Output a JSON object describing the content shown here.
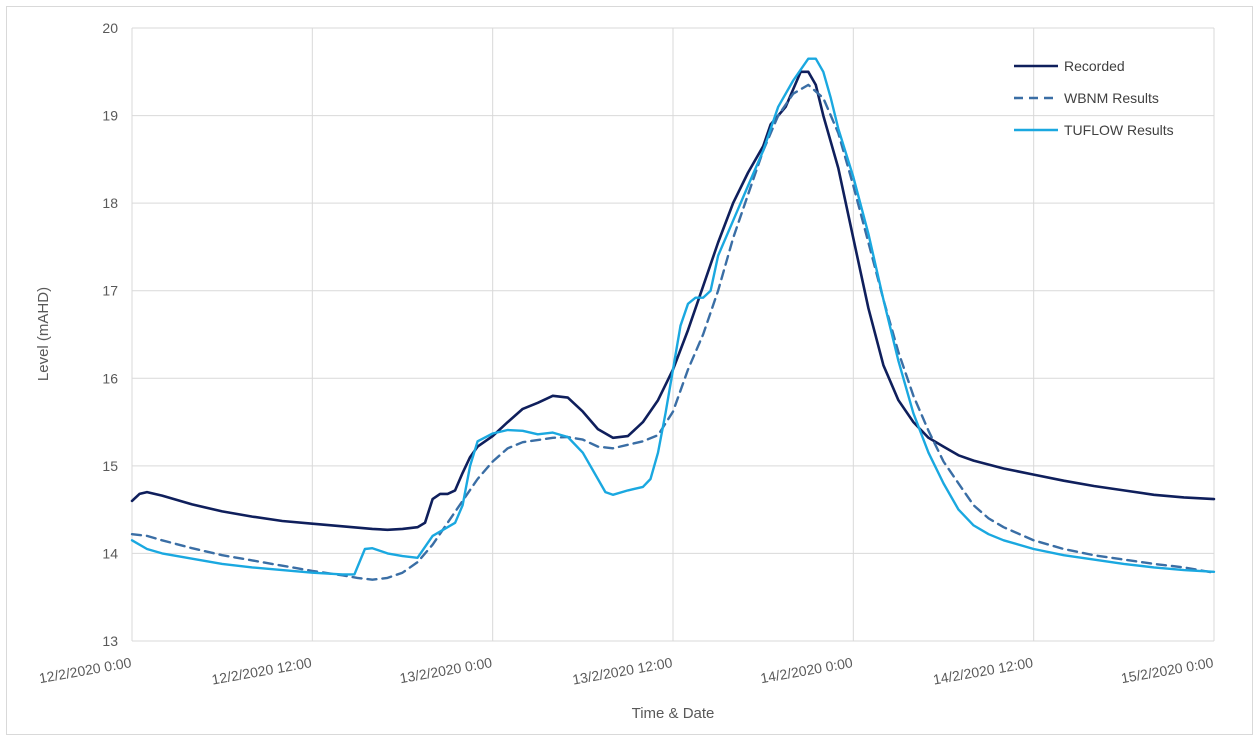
{
  "chart_data": {
    "type": "line",
    "title": "",
    "xlabel": "Time & Date",
    "ylabel": "Level (mAHD)",
    "ylim": [
      13,
      20
    ],
    "yticks": [
      "13",
      "14",
      "15",
      "16",
      "17",
      "18",
      "19",
      "20"
    ],
    "xlim": [
      0,
      72
    ],
    "xunit": "hours after 12/2/2020 0:00",
    "xticks": [
      "12/2/2020 0:00",
      "12/2/2020 12:00",
      "13/2/2020 0:00",
      "13/2/2020 12:00",
      "14/2/2020 0:00",
      "14/2/2020 12:00",
      "15/2/2020 0:00"
    ],
    "grid": true,
    "legend_position": "top-right",
    "series": [
      {
        "name": "Recorded",
        "color": "#0f1f5c",
        "style": "solid",
        "points": [
          [
            0,
            14.6
          ],
          [
            0.5,
            14.68
          ],
          [
            1,
            14.7
          ],
          [
            2,
            14.66
          ],
          [
            4,
            14.56
          ],
          [
            6,
            14.48
          ],
          [
            8,
            14.42
          ],
          [
            10,
            14.37
          ],
          [
            12,
            14.34
          ],
          [
            14,
            14.31
          ],
          [
            16,
            14.28
          ],
          [
            17,
            14.27
          ],
          [
            18,
            14.28
          ],
          [
            19,
            14.3
          ],
          [
            19.5,
            14.35
          ],
          [
            20,
            14.62
          ],
          [
            20.5,
            14.68
          ],
          [
            21,
            14.68
          ],
          [
            21.5,
            14.72
          ],
          [
            22,
            14.92
          ],
          [
            22.5,
            15.1
          ],
          [
            23,
            15.22
          ],
          [
            24,
            15.34
          ],
          [
            25,
            15.5
          ],
          [
            26,
            15.65
          ],
          [
            27,
            15.72
          ],
          [
            28,
            15.8
          ],
          [
            29,
            15.78
          ],
          [
            30,
            15.62
          ],
          [
            31,
            15.42
          ],
          [
            32,
            15.32
          ],
          [
            33,
            15.34
          ],
          [
            34,
            15.5
          ],
          [
            35,
            15.75
          ],
          [
            36,
            16.1
          ],
          [
            37,
            16.55
          ],
          [
            38,
            17.05
          ],
          [
            39,
            17.55
          ],
          [
            40,
            18.0
          ],
          [
            41,
            18.35
          ],
          [
            42,
            18.65
          ],
          [
            42.5,
            18.9
          ],
          [
            43,
            19.0
          ],
          [
            43.5,
            19.1
          ],
          [
            44,
            19.3
          ],
          [
            44.5,
            19.5
          ],
          [
            45,
            19.5
          ],
          [
            45.5,
            19.35
          ],
          [
            46,
            19.0
          ],
          [
            47,
            18.4
          ],
          [
            48,
            17.6
          ],
          [
            49,
            16.8
          ],
          [
            50,
            16.15
          ],
          [
            51,
            15.75
          ],
          [
            52,
            15.5
          ],
          [
            53,
            15.32
          ],
          [
            54,
            15.22
          ],
          [
            55,
            15.12
          ],
          [
            56,
            15.06
          ],
          [
            58,
            14.97
          ],
          [
            60,
            14.9
          ],
          [
            62,
            14.83
          ],
          [
            64,
            14.77
          ],
          [
            66,
            14.72
          ],
          [
            68,
            14.67
          ],
          [
            70,
            14.64
          ],
          [
            72,
            14.62
          ]
        ]
      },
      {
        "name": "WBNM Results",
        "color": "#3a6ea5",
        "style": "dashed",
        "points": [
          [
            0,
            14.22
          ],
          [
            1,
            14.2
          ],
          [
            2,
            14.15
          ],
          [
            4,
            14.06
          ],
          [
            6,
            13.98
          ],
          [
            8,
            13.92
          ],
          [
            10,
            13.86
          ],
          [
            12,
            13.8
          ],
          [
            14,
            13.75
          ],
          [
            15,
            13.72
          ],
          [
            16,
            13.7
          ],
          [
            17,
            13.72
          ],
          [
            18,
            13.78
          ],
          [
            19,
            13.9
          ],
          [
            20,
            14.1
          ],
          [
            21,
            14.35
          ],
          [
            22,
            14.6
          ],
          [
            23,
            14.85
          ],
          [
            24,
            15.05
          ],
          [
            25,
            15.2
          ],
          [
            26,
            15.27
          ],
          [
            28,
            15.32
          ],
          [
            29,
            15.33
          ],
          [
            30,
            15.3
          ],
          [
            31,
            15.22
          ],
          [
            32,
            15.2
          ],
          [
            33,
            15.24
          ],
          [
            34,
            15.28
          ],
          [
            35,
            15.35
          ],
          [
            36,
            15.62
          ],
          [
            37,
            16.1
          ],
          [
            38,
            16.5
          ],
          [
            39,
            17.0
          ],
          [
            40,
            17.6
          ],
          [
            41,
            18.1
          ],
          [
            42,
            18.6
          ],
          [
            43,
            19.0
          ],
          [
            44,
            19.25
          ],
          [
            45,
            19.35
          ],
          [
            46,
            19.2
          ],
          [
            47,
            18.8
          ],
          [
            48,
            18.2
          ],
          [
            49,
            17.55
          ],
          [
            50,
            16.9
          ],
          [
            51,
            16.3
          ],
          [
            52,
            15.8
          ],
          [
            53,
            15.4
          ],
          [
            54,
            15.05
          ],
          [
            55,
            14.8
          ],
          [
            56,
            14.55
          ],
          [
            57,
            14.4
          ],
          [
            58,
            14.3
          ],
          [
            60,
            14.15
          ],
          [
            62,
            14.05
          ],
          [
            64,
            13.98
          ],
          [
            66,
            13.93
          ],
          [
            68,
            13.88
          ],
          [
            70,
            13.84
          ],
          [
            72,
            13.78
          ]
        ]
      },
      {
        "name": "TUFLOW Results",
        "color": "#1aa8e0",
        "style": "solid",
        "points": [
          [
            0,
            14.15
          ],
          [
            1,
            14.05
          ],
          [
            2,
            14.0
          ],
          [
            4,
            13.94
          ],
          [
            6,
            13.88
          ],
          [
            8,
            13.84
          ],
          [
            10,
            13.81
          ],
          [
            12,
            13.78
          ],
          [
            14,
            13.76
          ],
          [
            14.8,
            13.76
          ],
          [
            15.5,
            14.05
          ],
          [
            16,
            14.06
          ],
          [
            17,
            14.0
          ],
          [
            18,
            13.97
          ],
          [
            19,
            13.95
          ],
          [
            20,
            14.2
          ],
          [
            21,
            14.3
          ],
          [
            21.5,
            14.35
          ],
          [
            22,
            14.55
          ],
          [
            22.5,
            15.0
          ],
          [
            23,
            15.28
          ],
          [
            24,
            15.37
          ],
          [
            25,
            15.41
          ],
          [
            26,
            15.4
          ],
          [
            27,
            15.36
          ],
          [
            28,
            15.38
          ],
          [
            29,
            15.33
          ],
          [
            30,
            15.15
          ],
          [
            31,
            14.85
          ],
          [
            31.5,
            14.7
          ],
          [
            32,
            14.67
          ],
          [
            33,
            14.72
          ],
          [
            34,
            14.76
          ],
          [
            34.5,
            14.85
          ],
          [
            35,
            15.15
          ],
          [
            35.5,
            15.6
          ],
          [
            36,
            16.1
          ],
          [
            36.5,
            16.6
          ],
          [
            37,
            16.85
          ],
          [
            37.5,
            16.92
          ],
          [
            38,
            16.92
          ],
          [
            38.5,
            17.0
          ],
          [
            39,
            17.4
          ],
          [
            40,
            17.8
          ],
          [
            41,
            18.2
          ],
          [
            42,
            18.6
          ],
          [
            43,
            19.1
          ],
          [
            44,
            19.4
          ],
          [
            45,
            19.65
          ],
          [
            45.5,
            19.65
          ],
          [
            46,
            19.5
          ],
          [
            46.5,
            19.2
          ],
          [
            47,
            18.85
          ],
          [
            48,
            18.3
          ],
          [
            49,
            17.65
          ],
          [
            50,
            16.9
          ],
          [
            51,
            16.2
          ],
          [
            52,
            15.6
          ],
          [
            53,
            15.15
          ],
          [
            54,
            14.8
          ],
          [
            55,
            14.5
          ],
          [
            56,
            14.32
          ],
          [
            57,
            14.22
          ],
          [
            58,
            14.15
          ],
          [
            60,
            14.05
          ],
          [
            62,
            13.98
          ],
          [
            64,
            13.93
          ],
          [
            66,
            13.88
          ],
          [
            68,
            13.84
          ],
          [
            70,
            13.81
          ],
          [
            72,
            13.79
          ]
        ]
      }
    ]
  }
}
